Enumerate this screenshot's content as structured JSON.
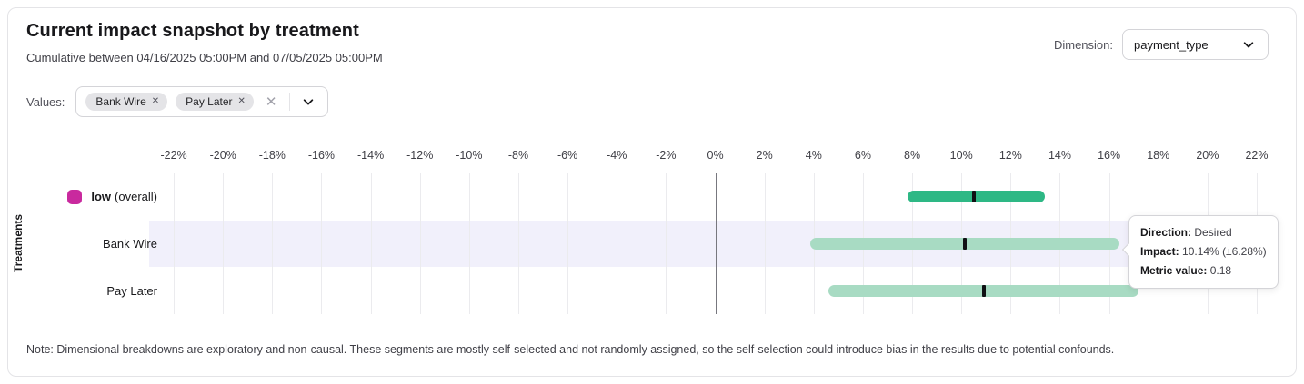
{
  "header": {
    "title": "Current impact snapshot by treatment",
    "subtitle": "Cumulative between 04/16/2025 05:00PM and 07/05/2025 05:00PM",
    "dimension_label": "Dimension:",
    "dimension_value": "payment_type"
  },
  "filters": {
    "values_label": "Values:",
    "chips": [
      "Bank Wire",
      "Pay Later"
    ],
    "chip_remove_glyph": "✕",
    "clear_glyph": "✕"
  },
  "chart_data": {
    "type": "range-bar",
    "ylabel": "Treatments",
    "x_axis": {
      "min": -23,
      "max": 22,
      "tick_min": -22,
      "tick_max": 22,
      "tick_step": 2,
      "tick_suffix": "%"
    },
    "grid": true,
    "rows": [
      {
        "label": "low",
        "label_suffix": "(overall)",
        "swatch_color": "#c9299e",
        "range_pct": [
          7.8,
          13.4
        ],
        "impact_pct": 10.5,
        "color": "#2eb885",
        "highlighted": false
      },
      {
        "label": "Bank Wire",
        "range_pct": [
          3.86,
          16.42
        ],
        "impact_pct": 10.14,
        "color": "#a8dbc3",
        "highlighted": true
      },
      {
        "label": "Pay Later",
        "range_pct": [
          4.6,
          17.2
        ],
        "impact_pct": 10.9,
        "color": "#a8dbc3",
        "highlighted": false
      }
    ]
  },
  "tooltip": {
    "lines": [
      {
        "label": "Direction:",
        "value": "Desired"
      },
      {
        "label": "Impact:",
        "value": "10.14% (±6.28%)"
      },
      {
        "label": "Metric value:",
        "value": "0.18"
      }
    ]
  },
  "note": "Note: Dimensional breakdowns are exploratory and non-causal. These segments are mostly self-selected and not randomly assigned, so the self-selection could introduce bias in the results due to potential confounds.",
  "colors": {
    "overall_bar": "#2eb885",
    "segment_bar": "#a8dbc3",
    "legend_swatch": "#c9299e",
    "highlight_row": "#f1f0fb",
    "zero_line": "#77777e",
    "gridline": "#ebebee"
  }
}
